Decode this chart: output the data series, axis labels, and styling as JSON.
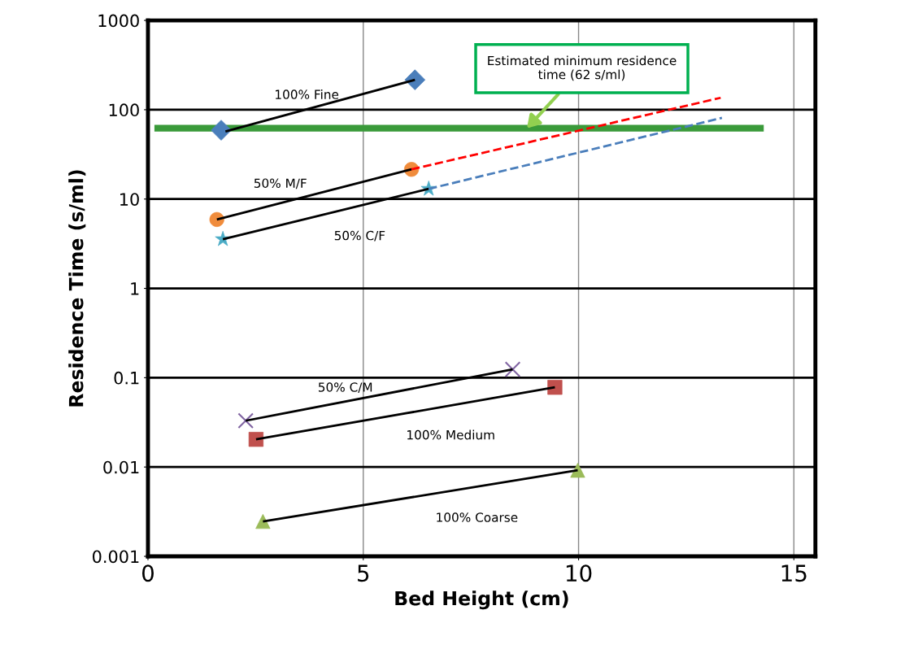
{
  "chart_data": {
    "type": "scatter",
    "xlabel": "Bed Height (cm)",
    "ylabel": "Residence Time (s/ml)",
    "xlim": [
      0,
      15.5
    ],
    "xticks": [
      0,
      5,
      10,
      15
    ],
    "ylim": [
      0.001,
      1000
    ],
    "yticks": [
      0.001,
      0.01,
      0.1,
      1,
      10,
      100,
      1000
    ],
    "log": "y",
    "grid": true,
    "series": [
      {
        "marker": "diamond",
        "color": "#4a7ebb",
        "x": [
          1.7,
          6.2
        ],
        "values": [
          59,
          216
        ]
      },
      {
        "marker": "circle",
        "color": "#f08c3c",
        "x": [
          1.6,
          6.12
        ],
        "values": [
          5.9,
          21.5
        ]
      },
      {
        "marker": "star",
        "color": "#4bacc6",
        "x": [
          1.74,
          6.52
        ],
        "values": [
          3.55,
          13
        ]
      },
      {
        "marker": "cross",
        "color": "#8064a2",
        "x": [
          2.27,
          8.47
        ],
        "values": [
          0.033,
          0.124
        ]
      },
      {
        "marker": "square",
        "color": "#c0504d",
        "x": [
          2.51,
          9.45
        ],
        "values": [
          0.0204,
          0.078
        ]
      },
      {
        "marker": "triangle",
        "color": "#9bbb59",
        "x": [
          2.67,
          9.98
        ],
        "values": [
          0.00246,
          0.0092
        ]
      },
      {
        "name": "100% Fine",
        "type": "line",
        "color": "#000000",
        "line_style": "solid",
        "x": [
          1.8,
          6.2
        ],
        "values": [
          57,
          216
        ]
      },
      {
        "name": "50% M/F",
        "type": "line",
        "color": "#000000",
        "line_style": "solid",
        "x": [
          1.6,
          6.12
        ],
        "values": [
          5.9,
          21.5
        ]
      },
      {
        "name": "50% C/F",
        "type": "line",
        "color": "#000000",
        "line_style": "solid",
        "x": [
          1.74,
          6.52
        ],
        "values": [
          3.55,
          13
        ]
      },
      {
        "name": "50% C/M",
        "type": "line",
        "color": "#000000",
        "line_style": "solid",
        "x": [
          2.27,
          8.47
        ],
        "values": [
          0.033,
          0.124
        ]
      },
      {
        "name": "100% Medium",
        "type": "line",
        "color": "#000000",
        "line_style": "solid",
        "x": [
          2.51,
          9.45
        ],
        "values": [
          0.0204,
          0.078
        ]
      },
      {
        "name": "100% Coarse",
        "type": "line",
        "color": "#000000",
        "line_style": "solid",
        "x": [
          2.67,
          9.98
        ],
        "values": [
          0.00246,
          0.0092
        ]
      },
      {
        "type": "line",
        "color": "#ff0000",
        "line_style": "dashed",
        "x": [
          6.12,
          13.3
        ],
        "values": [
          21.5,
          136
        ]
      },
      {
        "type": "line",
        "color": "#4a7ebb",
        "line_style": "dashed",
        "x": [
          6.52,
          13.33
        ],
        "values": [
          13,
          81
        ]
      },
      {
        "type": "line",
        "color": "#3a9a3a",
        "line_style": "solid",
        "x": [
          0.15,
          14.3
        ],
        "values": [
          62,
          62
        ]
      }
    ],
    "annotations": [
      {
        "text": "Estimated minimum residence time (62 s/ml)",
        "x": 8.8,
        "y": 62
      }
    ]
  }
}
